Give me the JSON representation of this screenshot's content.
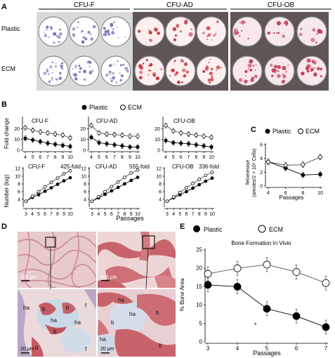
{
  "panels": {
    "A": {
      "label": "A",
      "columns": [
        "CFU-F",
        "CFU-AD",
        "CFU-OB"
      ],
      "rows": [
        "Plastic",
        "ECM"
      ]
    },
    "B": {
      "label": "B",
      "legend": {
        "plastic": "Plastic",
        "ecm": "ECM"
      },
      "fold_ylabel": "Fold change",
      "number_ylabel": "Number (log)",
      "xlabel": "Passages",
      "fold_titles": [
        "CFU-F",
        "CFU-AD",
        "CFU-OB"
      ],
      "log_titles": [
        "CFU-F",
        "CFU-AD",
        "CFU-OB"
      ],
      "log_folds": [
        "425-fold",
        "555-fold",
        "336-fold"
      ]
    },
    "C": {
      "label": "C",
      "legend": {
        "plastic": "Plastic",
        "ecm": "ECM"
      },
      "ylabel_line1": "Telomerase",
      "ylabel_line2": "(amoles/2 × 10⁵ Cells)",
      "xlabel": "Passages"
    },
    "D": {
      "label": "D",
      "scale_top_left": "100 μm",
      "scale_top_right": "100 μm",
      "scale_bottom_left": "20 μm",
      "scale_bottom_right": "20 μm",
      "tissue_labels": [
        "ha",
        "b",
        "b",
        "ha",
        "ha",
        "b",
        "b",
        "f",
        "f",
        "ha",
        "ha",
        "b",
        "b",
        "b",
        "ha"
      ]
    },
    "E": {
      "label": "E",
      "legend": {
        "plastic": "Plastic",
        "ecm": "ECM"
      },
      "title": "Bone Formation In Vivio",
      "ylabel": "% Bone Area",
      "xlabel": "Passages",
      "star": "*"
    }
  },
  "chart_data": [
    {
      "id": "B-fold-CFU-F",
      "type": "line",
      "title": "CFU-F",
      "ylabel": "Fold change",
      "x": [
        4,
        5,
        6,
        7,
        8,
        9,
        10
      ],
      "ylim": [
        0,
        30
      ],
      "yticks": [
        0,
        10,
        20
      ],
      "series": [
        {
          "name": "Plastic",
          "values": [
            11,
            9.5,
            8,
            6.5,
            5.5,
            4.5,
            3.5
          ]
        },
        {
          "name": "ECM",
          "values": [
            21,
            18.5,
            17,
            16,
            15,
            14,
            11.5
          ]
        }
      ]
    },
    {
      "id": "B-fold-CFU-AD",
      "type": "line",
      "title": "CFU-AD",
      "x": [
        4,
        5,
        6,
        7,
        8,
        9,
        10
      ],
      "ylim": [
        0,
        30
      ],
      "yticks": [
        0,
        10,
        20
      ],
      "series": [
        {
          "name": "Plastic",
          "values": [
            12,
            7,
            6,
            5,
            4,
            3,
            3
          ]
        },
        {
          "name": "ECM",
          "values": [
            23,
            16,
            15,
            14.5,
            14,
            13,
            13
          ]
        }
      ]
    },
    {
      "id": "B-fold-CFU-OB",
      "type": "line",
      "title": "CFU-OB",
      "x": [
        4,
        5,
        6,
        7,
        8,
        9,
        10
      ],
      "ylim": [
        0,
        30
      ],
      "yticks": [
        0,
        10,
        20
      ],
      "series": [
        {
          "name": "Plastic",
          "values": [
            9,
            7,
            6.5,
            6,
            5,
            4,
            3
          ]
        },
        {
          "name": "ECM",
          "values": [
            23,
            18,
            16,
            15,
            14,
            13,
            12
          ]
        }
      ]
    },
    {
      "id": "B-log-CFU-F",
      "type": "line",
      "title": "CFU-F",
      "ylabel": "Number (log)",
      "annotation": "425-fold",
      "x": [
        3,
        4,
        5,
        6,
        7,
        8,
        9,
        10
      ],
      "ylim": [
        2,
        12
      ],
      "yticks": [
        4,
        6,
        8,
        10,
        12
      ],
      "series": [
        {
          "name": "Plastic",
          "values": [
            3.5,
            4.5,
            5.2,
            6.1,
            7.0,
            7.9,
            8.8,
            9.6
          ]
        },
        {
          "name": "ECM",
          "values": [
            3.5,
            4.8,
            6.0,
            7.2,
            8.4,
            9.5,
            10.6,
            11.4
          ]
        }
      ]
    },
    {
      "id": "B-log-CFU-AD",
      "type": "line",
      "title": "CFU-AD",
      "annotation": "555-fold",
      "x": [
        3,
        4,
        5,
        6,
        7,
        8,
        9,
        10
      ],
      "ylim": [
        2,
        12
      ],
      "yticks": [
        4,
        6,
        8,
        10,
        12
      ],
      "series": [
        {
          "name": "Plastic",
          "values": [
            3.5,
            4.4,
            5.3,
            6.2,
            7.1,
            8.0,
            8.9,
            9.7
          ]
        },
        {
          "name": "ECM",
          "values": [
            3.5,
            4.7,
            6.0,
            7.3,
            8.5,
            9.7,
            10.8,
            11.6
          ]
        }
      ]
    },
    {
      "id": "B-log-CFU-OB",
      "type": "line",
      "title": "CFU-OB",
      "annotation": "336-fold",
      "x": [
        3,
        4,
        5,
        6,
        7,
        8,
        9,
        10
      ],
      "ylim": [
        2,
        12
      ],
      "yticks": [
        4,
        6,
        8,
        10,
        12
      ],
      "series": [
        {
          "name": "Plastic",
          "values": [
            3.5,
            4.4,
            5.2,
            6.0,
            6.9,
            7.8,
            8.7,
            9.5
          ]
        },
        {
          "name": "ECM",
          "values": [
            3.5,
            4.6,
            5.8,
            7.0,
            8.1,
            9.2,
            10.2,
            11.0
          ]
        }
      ]
    },
    {
      "id": "C",
      "type": "line",
      "ylabel": "Telomerase (amoles/2 × 10⁵ Cells)",
      "xlabel": "Passages",
      "x": [
        4,
        6,
        8,
        10
      ],
      "ylim": [
        0,
        6
      ],
      "yticks": [
        0,
        2,
        4,
        6
      ],
      "series": [
        {
          "name": "Plastic",
          "values": [
            3.5,
            2.6,
            1.6,
            1.7
          ]
        },
        {
          "name": "ECM",
          "values": [
            3.5,
            3.0,
            3.1,
            4.2
          ]
        }
      ]
    },
    {
      "id": "E",
      "type": "line",
      "title": "Bone Formation In Vivio",
      "ylabel": "% Bone Area",
      "xlabel": "Passages",
      "x": [
        3,
        4,
        5,
        6,
        7
      ],
      "ylim": [
        0,
        25
      ],
      "yticks": [
        0,
        5,
        10,
        15,
        20,
        25
      ],
      "series": [
        {
          "name": "Plastic",
          "values": [
            15.5,
            15,
            9,
            7,
            4
          ]
        },
        {
          "name": "ECM",
          "values": [
            18.5,
            20,
            21,
            19,
            16
          ]
        }
      ]
    }
  ]
}
